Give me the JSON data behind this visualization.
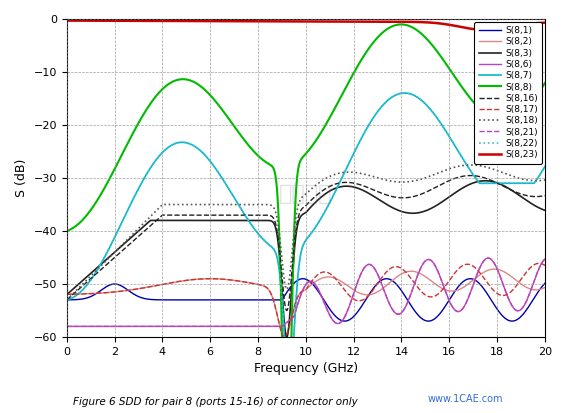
{
  "title": "Figure 6 SDD for pair 8 (ports 15-16) of connector only",
  "xlabel": "Frequency (GHz)",
  "ylabel": "S (dB)",
  "xlim": [
    0,
    20
  ],
  "ylim": [
    -60,
    0
  ],
  "xticks": [
    0,
    2,
    4,
    6,
    8,
    10,
    12,
    14,
    16,
    18,
    20
  ],
  "yticks": [
    0,
    -10,
    -20,
    -30,
    -40,
    -50,
    -60
  ],
  "watermark1": "仿真在线",
  "watermark2": "www.1CAE.com",
  "legend_entries": [
    "S(8,1)",
    "S(8,2)",
    "S(8,3)",
    "S(8,6)",
    "S(8,7)",
    "S(8,8)",
    "S(8,16)",
    "S(8,17)",
    "S(8,18)",
    "S(8,21)",
    "S(8,22)",
    "S(8,23)"
  ],
  "bg_color": "#ffffff",
  "series": {
    "S(8,1)": {
      "color": "#0000aa",
      "linestyle": "-",
      "linewidth": 1.0
    },
    "S(8,2)": {
      "color": "#dd8888",
      "linestyle": "-",
      "linewidth": 1.0
    },
    "S(8,3)": {
      "color": "#222222",
      "linestyle": "-",
      "linewidth": 1.2
    },
    "S(8,6)": {
      "color": "#bb44bb",
      "linestyle": "-",
      "linewidth": 1.0
    },
    "S(8,7)": {
      "color": "#00bbcc",
      "linestyle": "-",
      "linewidth": 1.2
    },
    "S(8,8)": {
      "color": "#00bb00",
      "linestyle": "-",
      "linewidth": 1.5
    },
    "S(8,16)": {
      "color": "#222222",
      "linestyle": "--",
      "linewidth": 1.0
    },
    "S(8,17)": {
      "color": "#cc3333",
      "linestyle": "--",
      "linewidth": 1.0
    },
    "S(8,18)": {
      "color": "#555555",
      "linestyle": ":",
      "linewidth": 1.2
    },
    "S(8,21)": {
      "color": "#bb44bb",
      "linestyle": "--",
      "linewidth": 1.0
    },
    "S(8,22)": {
      "color": "#44bbcc",
      "linestyle": ":",
      "linewidth": 1.2
    },
    "S(8,23)": {
      "color": "#cc0000",
      "linestyle": "-",
      "linewidth": 1.8
    }
  }
}
